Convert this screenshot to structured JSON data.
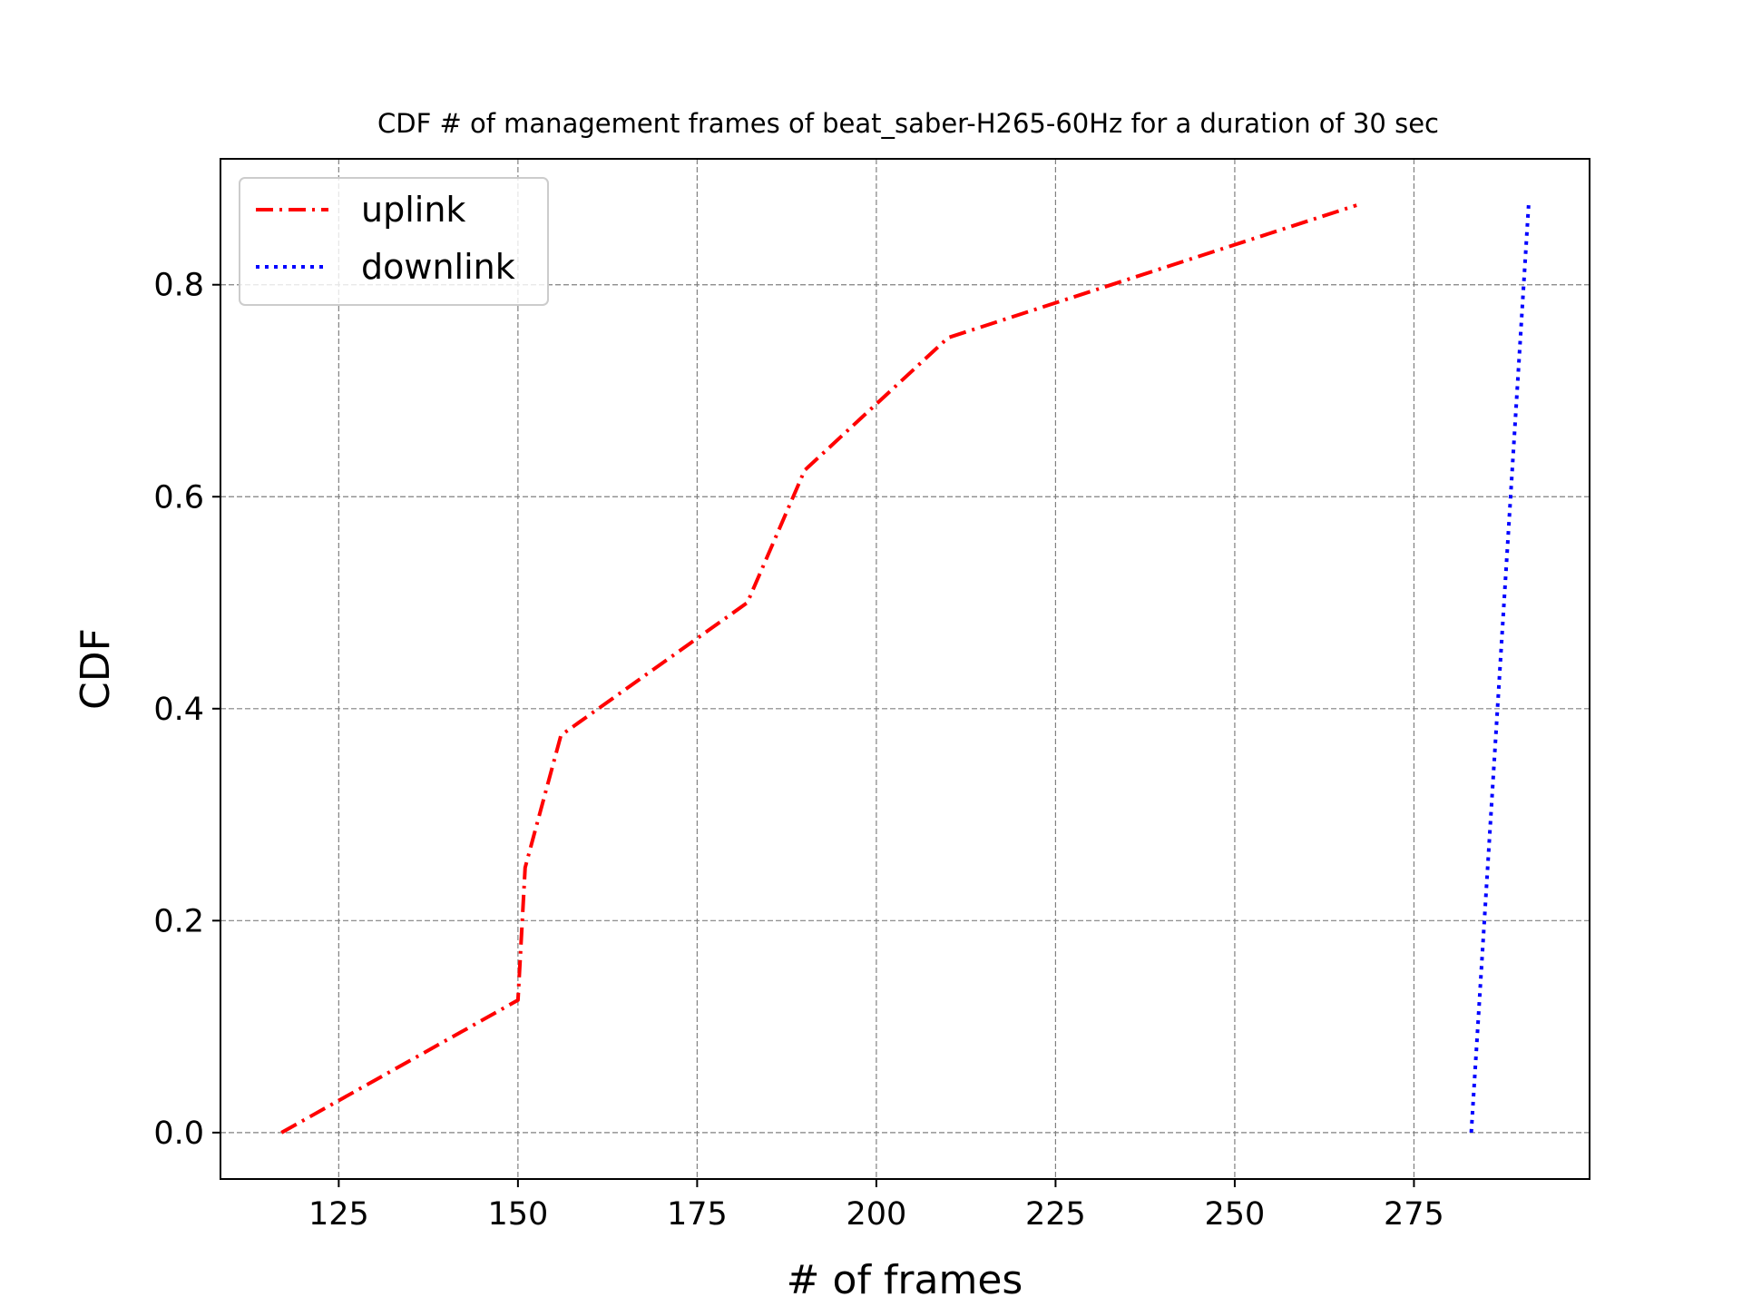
{
  "chart_data": {
    "type": "line",
    "title": "CDF # of management frames of beat_saber-H265-60Hz for a duration of 30 sec",
    "xlabel": "# of frames",
    "ylabel": "CDF",
    "xlim": [
      108.5,
      299.5
    ],
    "ylim": [
      -0.0438,
      0.9188
    ],
    "xticks": [
      125,
      150,
      175,
      200,
      225,
      250,
      275
    ],
    "yticks": [
      0.0,
      0.2,
      0.4,
      0.6,
      0.8
    ],
    "xtick_labels": [
      "125",
      "150",
      "175",
      "200",
      "225",
      "250",
      "275"
    ],
    "ytick_labels": [
      "0.0",
      "0.2",
      "0.4",
      "0.6",
      "0.8"
    ],
    "grid": true,
    "legend_position": "top-left",
    "series": [
      {
        "name": "uplink",
        "color": "#ff0000",
        "style": "dash-dot",
        "x": [
          117,
          150,
          151,
          152,
          156,
          182,
          190,
          210,
          267
        ],
        "y": [
          0.0,
          0.125,
          0.25,
          0.275,
          0.375,
          0.5,
          0.625,
          0.75,
          0.875
        ]
      },
      {
        "name": "downlink",
        "color": "#0000ff",
        "style": "dotted",
        "x": [
          283,
          291
        ],
        "y": [
          0.0,
          0.875
        ]
      }
    ]
  }
}
